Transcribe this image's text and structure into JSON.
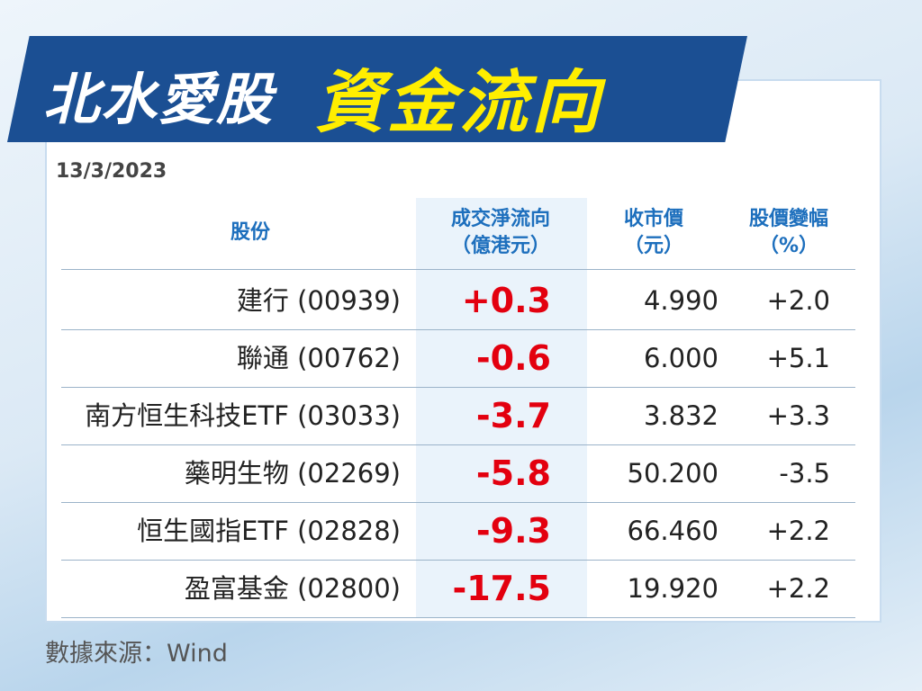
{
  "header": {
    "title_part1": "北水愛股",
    "title_part2": "資金流向",
    "date": "13/3/2023"
  },
  "table": {
    "columns": [
      [
        "股份"
      ],
      [
        "成交淨流向",
        "（億港元）"
      ],
      [
        "收市價",
        "（元）"
      ],
      [
        "股價變幅",
        "（%）"
      ]
    ],
    "rows": [
      [
        "建行 (00939)",
        "+0.3",
        "4.990",
        "+2.0"
      ],
      [
        "聯通 (00762)",
        "-0.6",
        "6.000",
        "+5.1"
      ],
      [
        "南方恒生科技ETF (03033)",
        "-3.7",
        "3.832",
        "+3.3"
      ],
      [
        "藥明生物 (02269)",
        "-5.8",
        "50.200",
        "-3.5"
      ],
      [
        "恒生國指ETF (02828)",
        "-9.3",
        "66.460",
        "+2.2"
      ],
      [
        "盈富基金 (02800)",
        "-17.5",
        "19.920",
        "+2.2"
      ]
    ]
  },
  "footer": {
    "source": "數據來源：Wind"
  }
}
